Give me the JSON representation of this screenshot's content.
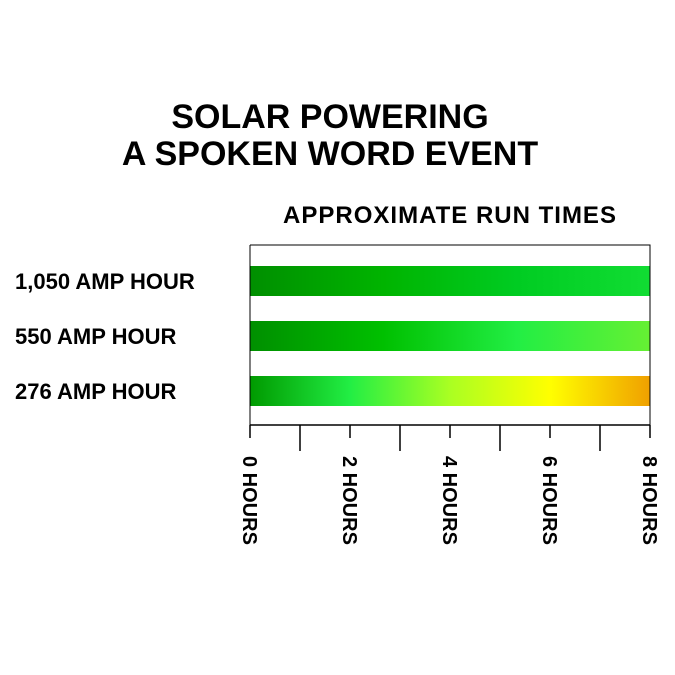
{
  "title_lines": [
    "SOLAR POWERING",
    "A SPOKEN WORD EVENT"
  ],
  "chart_data": {
    "type": "bar",
    "orientation": "horizontal",
    "title": "APPROXIMATE RUN TIMES",
    "categories": [
      "1,050 AMP HOUR",
      "550 AMP HOUR",
      "276 AMP HOUR"
    ],
    "values": [
      8,
      8,
      8
    ],
    "value_unit": "HOURS",
    "xlim": [
      0,
      8
    ],
    "x_ticks": [
      0,
      1,
      2,
      3,
      4,
      5,
      6,
      7,
      8
    ],
    "x_tick_labels": [
      {
        "value": 0,
        "label": "0 HOURS"
      },
      {
        "value": 2,
        "label": "2 HOURS"
      },
      {
        "value": 4,
        "label": "4 HOURS"
      },
      {
        "value": 6,
        "label": "6 HOURS"
      },
      {
        "value": 8,
        "label": "8 HOURS"
      }
    ],
    "grid": false,
    "bar_gradients": [
      [
        "#008f00",
        "#00b400",
        "#00cc22",
        "#11dd33"
      ],
      [
        "#008f00",
        "#00c000",
        "#22ee44",
        "#66f033"
      ],
      [
        "#009a00",
        "#22ee44",
        "#aaff22",
        "#ffff00",
        "#f0a000"
      ]
    ]
  }
}
